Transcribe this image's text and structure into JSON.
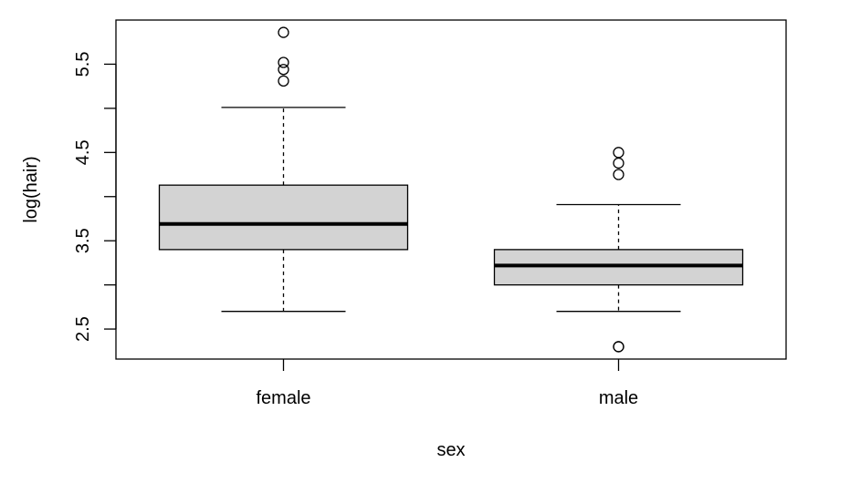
{
  "chart_data": {
    "type": "box",
    "xlabel": "sex",
    "ylabel": "log(hair)",
    "ylim": [
      2.16,
      6.0
    ],
    "yticks": [
      2.5,
      3,
      3.5,
      4,
      4.5,
      5,
      5.5
    ],
    "ytick_labels": [
      "2.5",
      "",
      "3.5",
      "",
      "4.5",
      "",
      "5.5"
    ],
    "categories": [
      "female",
      "male"
    ],
    "box_fill": "#d3d3d3",
    "boxes": [
      {
        "category": "female",
        "whisker_low": 2.7,
        "q1": 3.4,
        "median": 3.69,
        "q3": 4.13,
        "whisker_high": 5.01,
        "outliers": [
          5.31,
          5.44,
          5.52,
          5.86
        ]
      },
      {
        "category": "male",
        "whisker_low": 2.7,
        "q1": 3.0,
        "median": 3.22,
        "q3": 3.4,
        "whisker_high": 3.91,
        "outliers": [
          2.3,
          2.3,
          4.25,
          4.38,
          4.5
        ]
      }
    ]
  }
}
